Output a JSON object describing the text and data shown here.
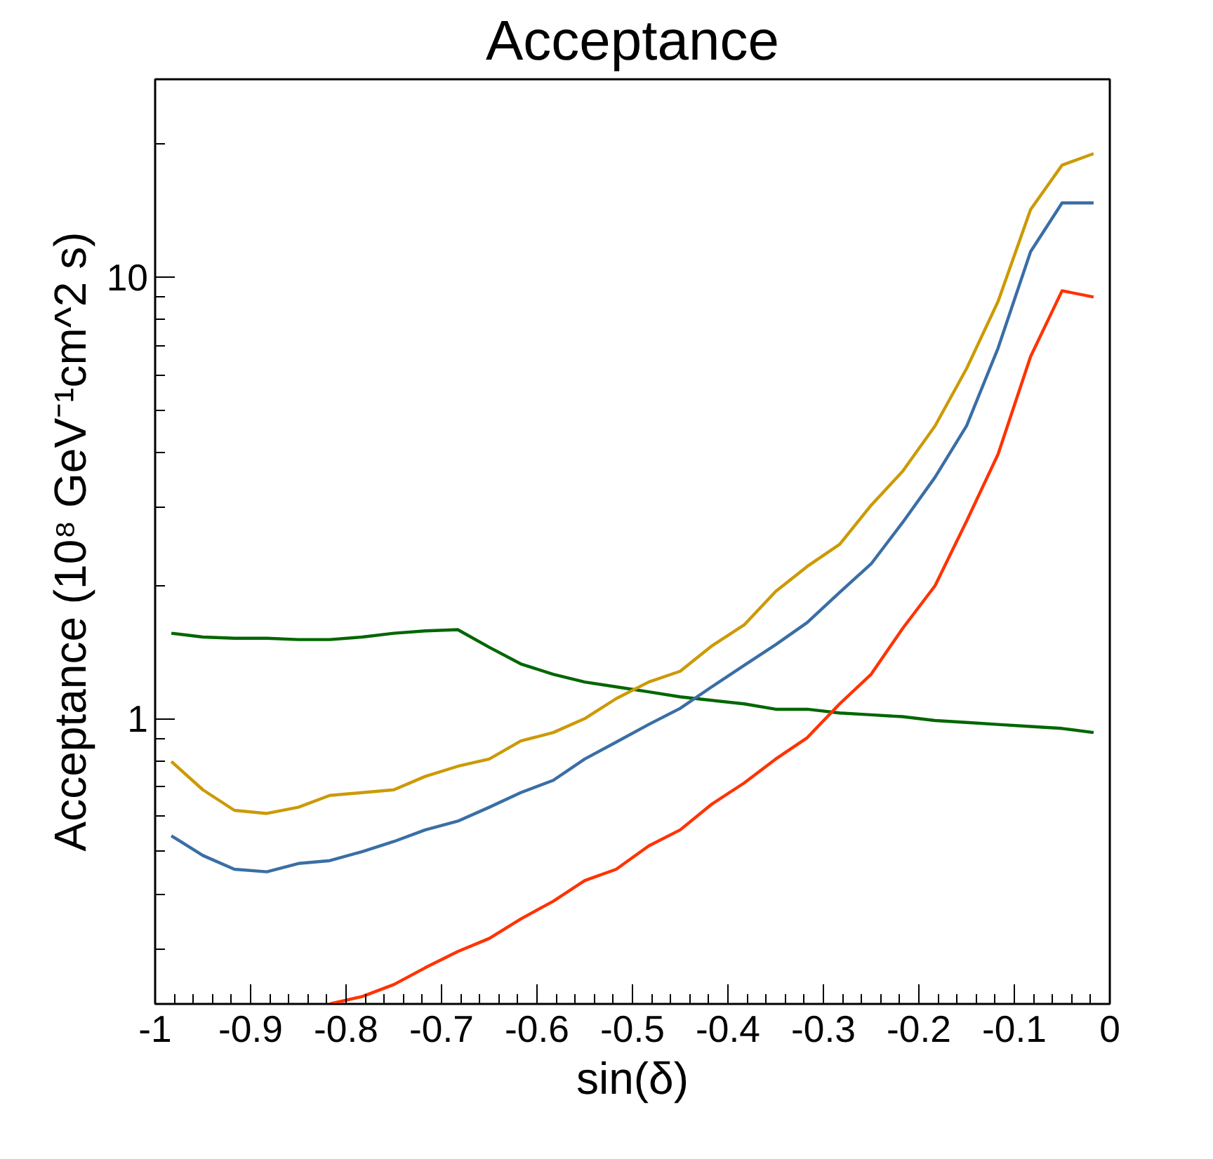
{
  "chart_data": {
    "type": "line",
    "title": "Acceptance",
    "xlabel": "sin(δ)",
    "ylabel": "Acceptance (10⁸ GeV⁻¹cm^2 s)",
    "log": "y",
    "grid": false,
    "marker": "none",
    "line_style": "solid",
    "x": [
      -0.983,
      -0.95,
      -0.917,
      -0.883,
      -0.85,
      -0.817,
      -0.783,
      -0.75,
      -0.717,
      -0.683,
      -0.65,
      -0.617,
      -0.583,
      -0.55,
      -0.517,
      -0.483,
      -0.45,
      -0.417,
      -0.383,
      -0.35,
      -0.317,
      -0.283,
      -0.25,
      -0.217,
      -0.183,
      -0.15,
      -0.117,
      -0.083,
      -0.05,
      -0.017
    ],
    "xlim": [
      -1,
      0
    ],
    "ylim": [
      0.226,
      28
    ],
    "xticks": [
      {
        "value": -1,
        "label": "-1"
      },
      {
        "value": -0.98,
        "label": null
      },
      {
        "value": -0.96,
        "label": null
      },
      {
        "value": -0.94,
        "label": null
      },
      {
        "value": -0.92,
        "label": null
      },
      -0.9,
      {
        "value": -0.88,
        "label": null
      },
      {
        "value": -0.86,
        "label": null
      },
      {
        "value": -0.84,
        "label": null
      },
      {
        "value": -0.82,
        "label": null
      },
      -0.8,
      {
        "value": -0.78,
        "label": null
      },
      {
        "value": -0.76,
        "label": null
      },
      {
        "value": -0.74,
        "label": null
      },
      {
        "value": -0.72,
        "label": null
      },
      -0.7,
      {
        "value": -0.68,
        "label": null
      },
      {
        "value": -0.66,
        "label": null
      },
      {
        "value": -0.64,
        "label": null
      },
      {
        "value": -0.62,
        "label": null
      },
      -0.6,
      {
        "value": -0.58,
        "label": null
      },
      {
        "value": -0.56,
        "label": null
      },
      {
        "value": -0.54,
        "label": null
      },
      {
        "value": -0.52,
        "label": null
      },
      -0.5,
      {
        "value": -0.48,
        "label": null
      },
      {
        "value": -0.46,
        "label": null
      },
      {
        "value": -0.44,
        "label": null
      },
      {
        "value": -0.42,
        "label": null
      },
      -0.4,
      {
        "value": -0.38,
        "label": null
      },
      {
        "value": -0.36,
        "label": null
      },
      {
        "value": -0.34,
        "label": null
      },
      {
        "value": -0.32,
        "label": null
      },
      -0.3,
      {
        "value": -0.28,
        "label": null
      },
      {
        "value": -0.26,
        "label": null
      },
      {
        "value": -0.24,
        "label": null
      },
      {
        "value": -0.22,
        "label": null
      },
      -0.2,
      {
        "value": -0.18,
        "label": null
      },
      {
        "value": -0.16,
        "label": null
      },
      {
        "value": -0.14,
        "label": null
      },
      {
        "value": -0.12,
        "label": null
      },
      -0.1,
      {
        "value": -0.08,
        "label": null
      },
      {
        "value": -0.06,
        "label": null
      },
      {
        "value": -0.04,
        "label": null
      },
      {
        "value": -0.02,
        "label": null
      },
      0
    ],
    "yticks": [
      {
        "value": 0.3,
        "label": null
      },
      {
        "value": 0.4,
        "label": null
      },
      {
        "value": 0.5,
        "label": null
      },
      {
        "value": 0.6,
        "label": null
      },
      {
        "value": 0.7,
        "label": null
      },
      {
        "value": 0.8,
        "label": null
      },
      {
        "value": 0.9,
        "label": null
      },
      1,
      {
        "value": 2,
        "label": null
      },
      {
        "value": 3,
        "label": null
      },
      {
        "value": 4,
        "label": null
      },
      {
        "value": 5,
        "label": null
      },
      {
        "value": 6,
        "label": null
      },
      {
        "value": 7,
        "label": null
      },
      {
        "value": 8,
        "label": null
      },
      {
        "value": 9,
        "label": null
      },
      10,
      {
        "value": 20,
        "label": null
      }
    ],
    "series": [
      {
        "color": "#006600",
        "values": [
          1.56,
          1.53,
          1.52,
          1.52,
          1.51,
          1.51,
          1.53,
          1.56,
          1.58,
          1.59,
          1.45,
          1.33,
          1.26,
          1.21,
          1.18,
          1.15,
          1.12,
          1.1,
          1.08,
          1.05,
          1.05,
          1.03,
          1.02,
          1.01,
          0.99,
          0.98,
          0.97,
          0.96,
          0.95,
          0.93
        ]
      },
      {
        "color": "#cc9a06",
        "values": [
          0.8,
          0.69,
          0.62,
          0.61,
          0.63,
          0.67,
          0.68,
          0.69,
          0.74,
          0.78,
          0.81,
          0.89,
          0.93,
          1.0,
          1.11,
          1.21,
          1.28,
          1.46,
          1.63,
          1.94,
          2.21,
          2.48,
          3.04,
          3.63,
          4.6,
          6.2,
          8.8,
          14.2,
          17.9,
          19.0
        ]
      },
      {
        "color": "#3a6ea5",
        "values": [
          0.543,
          0.49,
          0.456,
          0.45,
          0.47,
          0.477,
          0.5,
          0.527,
          0.56,
          0.586,
          0.63,
          0.68,
          0.725,
          0.81,
          0.885,
          0.97,
          1.055,
          1.18,
          1.32,
          1.47,
          1.65,
          1.93,
          2.24,
          2.78,
          3.52,
          4.6,
          6.9,
          11.4,
          14.7,
          14.7
        ]
      },
      {
        "color": "#ff3300",
        "values": [
          null,
          null,
          null,
          null,
          null,
          0.226,
          0.235,
          0.25,
          0.273,
          0.297,
          0.318,
          0.352,
          0.386,
          0.43,
          0.456,
          0.515,
          0.56,
          0.64,
          0.715,
          0.81,
          0.905,
          1.08,
          1.26,
          1.6,
          2.0,
          2.8,
          3.97,
          6.6,
          9.3,
          9.0
        ]
      }
    ]
  }
}
